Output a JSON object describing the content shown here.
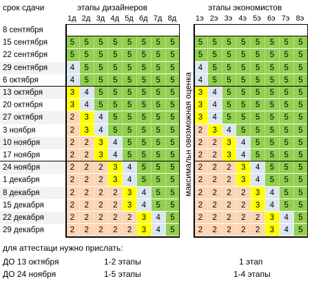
{
  "header": {
    "due_date_label": "срок сдачи",
    "designers_title": "этапы дизайнеров",
    "economists_title": "этапы экономистов",
    "vertical_label": "максимальн овозможная оценка"
  },
  "designer_stages": [
    "1д",
    "2д",
    "3д",
    "4д",
    "5д",
    "6д",
    "7д",
    "8д"
  ],
  "economist_stages": [
    "1э",
    "2э",
    "3э",
    "4э",
    "5э",
    "6э",
    "7э",
    "8э"
  ],
  "dates": [
    "8 сентября",
    "15 сентября",
    "22 сентября",
    "29 сентября",
    "6 октября",
    "13 октября",
    "20 октября",
    "27 октября",
    "3 ноября",
    "10 ноября",
    "17 ноября",
    "24 ноября",
    "1 декабря",
    "8 декабря",
    "15 декабря",
    "22 декабря",
    "29 декабря"
  ],
  "designer_grades": [
    [
      "",
      "",
      "",
      "",
      "",
      "",
      "",
      ""
    ],
    [
      "5",
      "5",
      "5",
      "5",
      "5",
      "5",
      "5",
      "5"
    ],
    [
      "5",
      "5",
      "5",
      "5",
      "5",
      "5",
      "5",
      "5"
    ],
    [
      "4",
      "5",
      "5",
      "5",
      "5",
      "5",
      "5",
      "5"
    ],
    [
      "4",
      "5",
      "5",
      "5",
      "5",
      "5",
      "5",
      "5"
    ],
    [
      "3",
      "4",
      "5",
      "5",
      "5",
      "5",
      "5",
      "5"
    ],
    [
      "3",
      "4",
      "5",
      "5",
      "5",
      "5",
      "5",
      "5"
    ],
    [
      "2",
      "3",
      "4",
      "5",
      "5",
      "5",
      "5",
      "5"
    ],
    [
      "2",
      "3",
      "4",
      "5",
      "5",
      "5",
      "5",
      "5"
    ],
    [
      "2",
      "2",
      "3",
      "4",
      "5",
      "5",
      "5",
      "5"
    ],
    [
      "2",
      "2",
      "3",
      "4",
      "5",
      "5",
      "5",
      "5"
    ],
    [
      "2",
      "2",
      "2",
      "3",
      "4",
      "5",
      "5",
      "5"
    ],
    [
      "2",
      "2",
      "2",
      "3",
      "4",
      "5",
      "5",
      "5"
    ],
    [
      "2",
      "2",
      "2",
      "2",
      "3",
      "4",
      "5",
      "5"
    ],
    [
      "2",
      "2",
      "2",
      "2",
      "3",
      "4",
      "5",
      "5"
    ],
    [
      "2",
      "2",
      "2",
      "2",
      "2",
      "3",
      "4",
      "5"
    ],
    [
      "2",
      "2",
      "2",
      "2",
      "2",
      "3",
      "4",
      "5"
    ]
  ],
  "economist_grades": [
    [
      "",
      "",
      "",
      "",
      "",
      "",
      "",
      ""
    ],
    [
      "5",
      "5",
      "5",
      "5",
      "5",
      "5",
      "5",
      "5"
    ],
    [
      "5",
      "5",
      "5",
      "5",
      "5",
      "5",
      "5",
      "5"
    ],
    [
      "4",
      "5",
      "5",
      "5",
      "5",
      "5",
      "5",
      "5"
    ],
    [
      "4",
      "5",
      "5",
      "5",
      "5",
      "5",
      "5",
      "5"
    ],
    [
      "3",
      "4",
      "5",
      "5",
      "5",
      "5",
      "5",
      "5"
    ],
    [
      "3",
      "4",
      "5",
      "5",
      "5",
      "5",
      "5",
      "5"
    ],
    [
      "3",
      "4",
      "5",
      "5",
      "5",
      "5",
      "5",
      "5"
    ],
    [
      "2",
      "3",
      "4",
      "5",
      "5",
      "5",
      "5",
      "5"
    ],
    [
      "2",
      "2",
      "3",
      "4",
      "5",
      "5",
      "5",
      "5"
    ],
    [
      "2",
      "2",
      "3",
      "4",
      "5",
      "5",
      "5",
      "5"
    ],
    [
      "2",
      "2",
      "2",
      "3",
      "4",
      "5",
      "5",
      "5"
    ],
    [
      "2",
      "2",
      "2",
      "3",
      "4",
      "5",
      "5",
      "5"
    ],
    [
      "2",
      "2",
      "2",
      "2",
      "3",
      "4",
      "5",
      "5"
    ],
    [
      "2",
      "2",
      "2",
      "2",
      "3",
      "4",
      "5",
      "5"
    ],
    [
      "2",
      "2",
      "2",
      "2",
      "2",
      "3",
      "4",
      "5"
    ],
    [
      "2",
      "2",
      "2",
      "2",
      "2",
      "3",
      "4",
      "5"
    ]
  ],
  "grade_colors": {
    "5": "#92d050",
    "4": "#dce6f1",
    "3": "#ffff00",
    "2": "#fcd5b4"
  },
  "alt_row_label_color": "#f2f2f2",
  "footer": {
    "title": "для аттестаци нужно прислать:",
    "rows": [
      {
        "deadline": "ДО 13 октября",
        "designers": "1-2 этапы",
        "economists": "1 этап"
      },
      {
        "deadline": "ДО 24 ноября",
        "designers": "1-5 этапы",
        "economists": "1-4 этапы"
      }
    ]
  }
}
